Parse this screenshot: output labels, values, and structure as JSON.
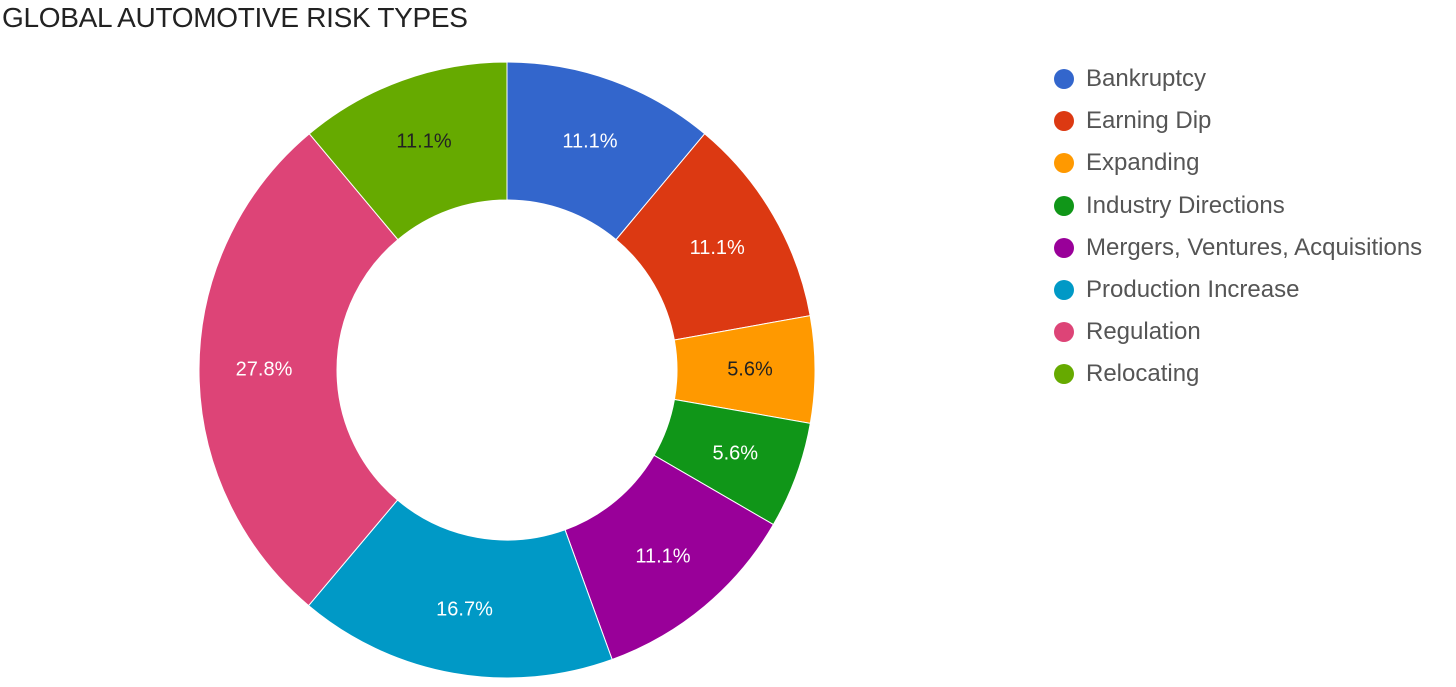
{
  "chart_data": {
    "type": "pie",
    "donut": true,
    "title": "GLOBAL AUTOMOTIVE RISK TYPES",
    "legend_position": "right",
    "series": [
      {
        "name": "Bankruptcy",
        "value": 11.1,
        "label": "11.1%",
        "color": "#3366cc",
        "label_color": "#ffffff"
      },
      {
        "name": "Earning Dip",
        "value": 11.1,
        "label": "11.1%",
        "color": "#dc3912",
        "label_color": "#ffffff"
      },
      {
        "name": "Expanding",
        "value": 5.6,
        "label": "5.6%",
        "color": "#ff9900",
        "label_color": "#222222"
      },
      {
        "name": "Industry Directions",
        "value": 5.6,
        "label": "5.6%",
        "color": "#109618",
        "label_color": "#ffffff"
      },
      {
        "name": "Mergers, Ventures, Acquisitions",
        "value": 11.1,
        "label": "11.1%",
        "color": "#990099",
        "label_color": "#ffffff"
      },
      {
        "name": "Production Increase",
        "value": 16.7,
        "label": "16.7%",
        "color": "#0099c6",
        "label_color": "#ffffff"
      },
      {
        "name": "Regulation",
        "value": 27.8,
        "label": "27.8%",
        "color": "#dd4477",
        "label_color": "#ffffff"
      },
      {
        "name": "Relocating",
        "value": 11.1,
        "label": "11.1%",
        "color": "#66aa00",
        "label_color": "#222222"
      }
    ]
  }
}
